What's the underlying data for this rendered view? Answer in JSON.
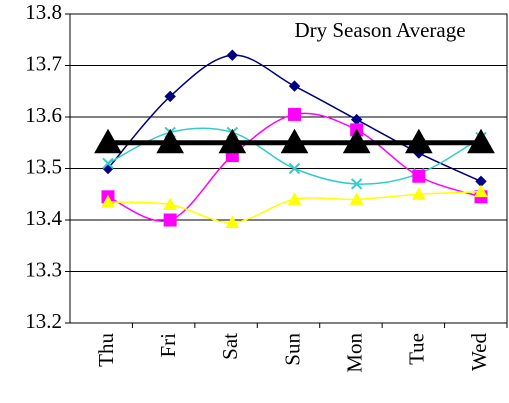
{
  "chart_data": {
    "type": "line",
    "annotation": "Dry Season Average",
    "categories": [
      "Thu",
      "Fri",
      "Sat",
      "Sun",
      "Mon",
      "Tue",
      "Wed"
    ],
    "series": [
      {
        "color": "#000080",
        "marker": "diamond",
        "values": [
          13.5,
          13.64,
          13.72,
          13.66,
          13.595,
          13.53,
          13.475
        ]
      },
      {
        "color": "#33cccc",
        "marker": "x",
        "values": [
          13.51,
          13.57,
          13.57,
          13.5,
          13.47,
          13.49,
          13.56
        ]
      },
      {
        "color": "#ff00ff",
        "marker": "square",
        "values": [
          13.445,
          13.4,
          13.525,
          13.605,
          13.575,
          13.485,
          13.445
        ]
      },
      {
        "color": "#ffff00",
        "marker": "triangle",
        "values": [
          13.435,
          13.43,
          13.395,
          13.44,
          13.44,
          13.45,
          13.455
        ]
      },
      {
        "color": "#000000",
        "marker": "big-triangle",
        "values": [
          13.55,
          13.55,
          13.55,
          13.55,
          13.55,
          13.55,
          13.55
        ]
      }
    ],
    "ylim": [
      13.2,
      13.8
    ],
    "yticks": [
      13.2,
      13.3,
      13.4,
      13.5,
      13.6,
      13.7,
      13.8
    ],
    "grid": true
  }
}
